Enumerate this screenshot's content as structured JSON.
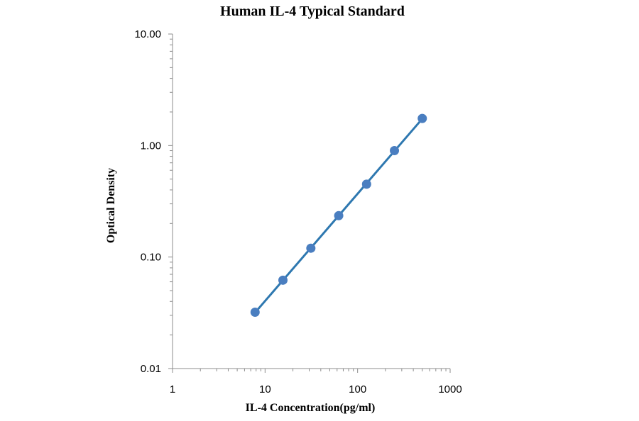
{
  "chart_data": {
    "type": "scatter",
    "title": "Human IL-4 Typical Standard",
    "xlabel": "IL-4 Concentration(pg/ml)",
    "ylabel": "Optical Density",
    "x_scale": "log",
    "y_scale": "log",
    "xlim": [
      1,
      1000
    ],
    "ylim": [
      0.01,
      10
    ],
    "x_ticks": [
      "1",
      "10",
      "100",
      "1000"
    ],
    "y_ticks": [
      "10.00",
      "1.00",
      "0.10",
      "0.01"
    ],
    "grid": false,
    "legend": "none",
    "series": [
      {
        "x": [
          7.8,
          15.6,
          31.25,
          62.5,
          125,
          250,
          500
        ],
        "y": [
          0.032,
          0.062,
          0.12,
          0.235,
          0.45,
          0.9,
          1.75
        ],
        "marker_color": "#4a7ec0",
        "line_color": "#2e78b0",
        "trendline": true
      }
    ]
  }
}
